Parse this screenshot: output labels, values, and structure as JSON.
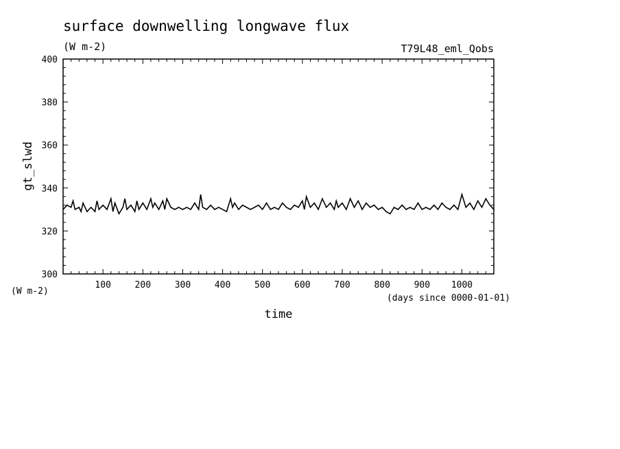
{
  "chart_data": {
    "type": "line",
    "title": "surface downwelling longwave flux",
    "subtitle": "(W m-2)",
    "experiment": "T79L48_eml_Qobs",
    "xlabel": "time",
    "xunits": "(days since 0000-01-01)",
    "ylabel": "gt_slwd",
    "yunits": "(W m-2)",
    "xlim": [
      0,
      1080
    ],
    "ylim": [
      300,
      400
    ],
    "xticks": [
      "100",
      "200",
      "300",
      "400",
      "500",
      "600",
      "700",
      "800",
      "900",
      "1000"
    ],
    "yticks": [
      "300",
      "320",
      "340",
      "360",
      "380",
      "400"
    ],
    "grid": false,
    "legend": "none",
    "series": [
      {
        "color": "#000000",
        "x": [
          0,
          10,
          20,
          25,
          30,
          40,
          45,
          50,
          60,
          70,
          80,
          85,
          90,
          100,
          110,
          120,
          125,
          130,
          140,
          150,
          155,
          160,
          170,
          180,
          185,
          190,
          200,
          210,
          220,
          225,
          230,
          240,
          250,
          255,
          260,
          270,
          280,
          290,
          300,
          310,
          320,
          330,
          340,
          345,
          350,
          360,
          370,
          380,
          390,
          400,
          410,
          420,
          425,
          430,
          440,
          450,
          460,
          470,
          480,
          490,
          500,
          510,
          520,
          530,
          540,
          550,
          560,
          570,
          580,
          590,
          600,
          605,
          610,
          620,
          630,
          640,
          650,
          660,
          670,
          680,
          685,
          690,
          700,
          710,
          720,
          730,
          740,
          750,
          760,
          770,
          780,
          790,
          800,
          810,
          820,
          830,
          840,
          850,
          860,
          870,
          880,
          890,
          900,
          910,
          920,
          930,
          940,
          950,
          960,
          970,
          980,
          990,
          1000,
          1010,
          1020,
          1030,
          1040,
          1050,
          1060,
          1070,
          1080
        ],
        "y": [
          330,
          332,
          331,
          334,
          330,
          331,
          329,
          333,
          329,
          331,
          329,
          334,
          330,
          332,
          330,
          335,
          329,
          333,
          328,
          331,
          335,
          330,
          332,
          329,
          334,
          330,
          333,
          330,
          335,
          331,
          333,
          330,
          334,
          330,
          335,
          331,
          330,
          331,
          330,
          331,
          330,
          333,
          330,
          337,
          331,
          330,
          332,
          330,
          331,
          330,
          329,
          335,
          331,
          333,
          330,
          332,
          331,
          330,
          331,
          332,
          330,
          333,
          330,
          331,
          330,
          333,
          331,
          330,
          332,
          331,
          334,
          330,
          336,
          331,
          333,
          330,
          335,
          331,
          333,
          330,
          334,
          331,
          333,
          330,
          335,
          331,
          334,
          330,
          333,
          331,
          332,
          330,
          331,
          329,
          328,
          331,
          330,
          332,
          330,
          331,
          330,
          333,
          330,
          331,
          330,
          332,
          330,
          333,
          331,
          330,
          332,
          330,
          337,
          331,
          333,
          330,
          334,
          331,
          335,
          332,
          330
        ]
      }
    ]
  }
}
